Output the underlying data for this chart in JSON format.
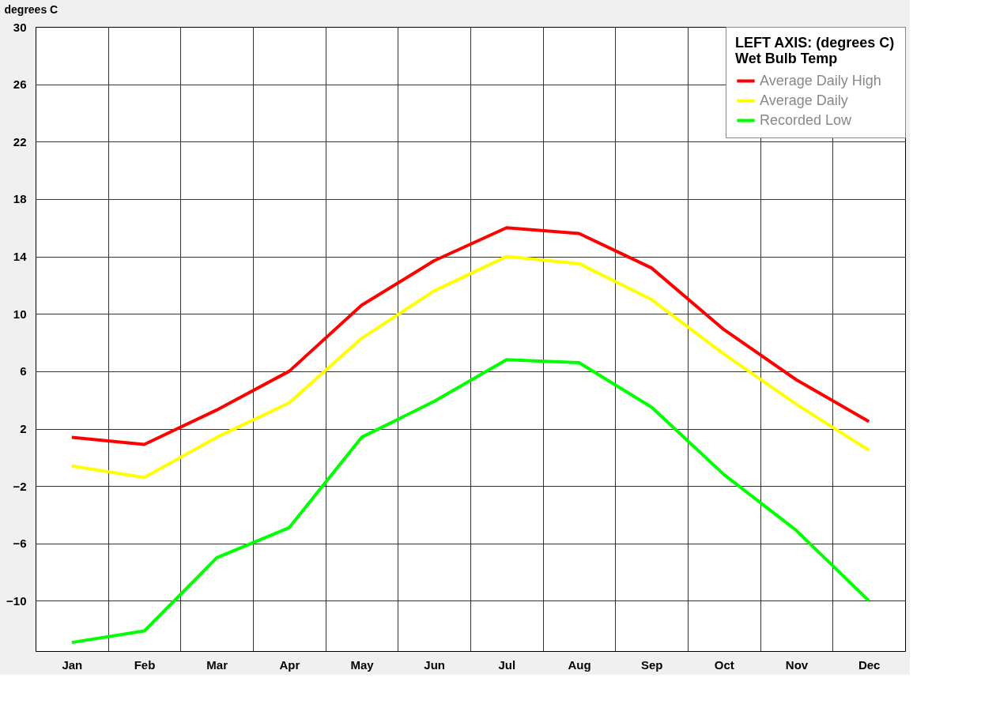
{
  "chart_data": {
    "type": "line",
    "ylabel": "degrees C",
    "legend_title": "LEFT AXIS: (degrees C)\nWet Bulb Temp",
    "categories": [
      "Jan",
      "Feb",
      "Mar",
      "Apr",
      "May",
      "Jun",
      "Jul",
      "Aug",
      "Sep",
      "Oct",
      "Nov",
      "Dec"
    ],
    "series": [
      {
        "name": "Average Daily High",
        "color": "#ff0000",
        "values": [
          1.4,
          0.9,
          3.3,
          6.0,
          10.6,
          13.7,
          16.0,
          15.6,
          13.2,
          8.9,
          5.4,
          2.5
        ]
      },
      {
        "name": "Average Daily",
        "color": "#ffff00",
        "values": [
          -0.6,
          -1.4,
          1.4,
          3.8,
          8.3,
          11.6,
          14.0,
          13.5,
          11.0,
          7.2,
          3.7,
          0.5
        ]
      },
      {
        "name": "Recorded Low",
        "color": "#00ff00",
        "values": [
          -12.9,
          -12.1,
          -7.0,
          -4.9,
          1.4,
          3.9,
          6.8,
          6.6,
          3.5,
          -1.2,
          -5.1,
          -10.0
        ]
      }
    ],
    "ylim": [
      -13.5,
      30
    ],
    "yticks": [
      -10,
      -6,
      -2,
      2,
      6,
      10,
      14,
      18,
      22,
      26,
      30
    ],
    "grid": true,
    "legend": "top right",
    "marker": "none",
    "line_style": "solid"
  }
}
